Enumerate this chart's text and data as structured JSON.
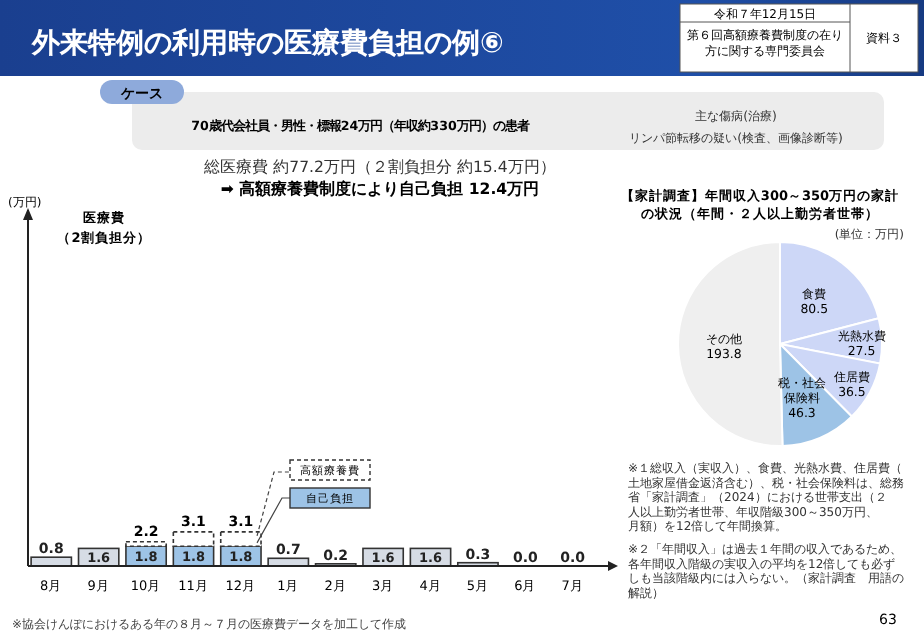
{
  "chart_data": [
    {
      "type": "bar",
      "stacked": true,
      "title": "外来特例の利用時の医療費負担の例⑥",
      "ylabel": "(万円)",
      "categories": [
        "8月",
        "9月",
        "10月",
        "11月",
        "12月",
        "1月",
        "2月",
        "3月",
        "4月",
        "5月",
        "6月",
        "7月"
      ],
      "ylim": [
        0,
        32
      ],
      "legend": "bottom",
      "tick_labels": "x",
      "series": [
        {
          "color": "#d6dce5",
          "values": [
            0.8,
            1.6,
            null,
            null,
            null,
            0.7,
            0.2,
            1.6,
            1.6,
            0.3,
            0.0,
            0.0
          ],
          "value_labels": [
            "0.8",
            "1.6",
            null,
            null,
            null,
            "0.7",
            "0.2",
            "1.6",
            "1.6",
            "0.3",
            "0.0",
            "0.0"
          ]
        },
        {
          "name": "自己負担",
          "color": "#9dc3e6",
          "values": [
            null,
            null,
            1.8,
            1.8,
            1.8,
            null,
            null,
            null,
            null,
            null,
            null,
            null
          ],
          "value_labels": [
            null,
            null,
            "1.8",
            "1.8",
            "1.8",
            null,
            null,
            null,
            null,
            null,
            null,
            null
          ]
        },
        {
          "name": "高額療養費",
          "color": "#ffffff",
          "line_style": "dashed",
          "values": [
            null,
            null,
            0.4,
            1.3,
            1.3,
            null,
            null,
            null,
            null,
            null,
            null,
            null
          ]
        }
      ],
      "totals": [
        null,
        null,
        "2.2",
        "3.1",
        "3.1",
        null,
        null,
        null,
        null,
        null,
        null,
        null
      ],
      "annotations": [
        "令和７年12月15日",
        "第６回高額療養費制度の在り方に関する専門委員会",
        "資料３",
        "ケース",
        "70歳代会社員・男性・標報24万円（年収約330万円）の患者",
        "主な傷病(治療)",
        "リンパ節転移の疑い(検査、画像診断等)",
        "総医療費 約77.2万円（２割負担分 約15.4万円）",
        "➡ 高額療養費制度により自己負担 12.4万円",
        "医療費",
        "（2割負担分）",
        "※協会けんぽにおけるある年の８月～７月の医療費データを加工して作成",
        "63"
      ]
    },
    {
      "type": "pie",
      "title": "【家計調査】年間収入300～350万円の家計の状況（年間・２人以上勤労者世帯）",
      "subtitle": "(単位：万円)",
      "categories": [
        "食費",
        "光熱水費",
        "住居費",
        "税・社会保険料",
        "その他"
      ],
      "values": [
        80.5,
        27.5,
        36.5,
        46.3,
        193.8
      ],
      "colors": [
        "#cdd7f7",
        "#cdd7f7",
        "#cdd7f7",
        "#9dc3e6",
        "#efefef"
      ],
      "data_labels": true,
      "annotations": [
        "※１総収入（実収入）、食費、光熱水費、住居費（土地家屋借金返済含む）、税・社会保険料は、総務省「家計調査」（2024）における世帯支出（２人以上勤労者世帯、年収階級300～350万円、月額）を12倍して年間換算。",
        "※２「年間収入」は過去１年間の収入であるため、各年間収入階級の実収入の平均を12倍しても必ずしも当該階級内には入らない。（家計調査　用語の解説）"
      ]
    }
  ]
}
